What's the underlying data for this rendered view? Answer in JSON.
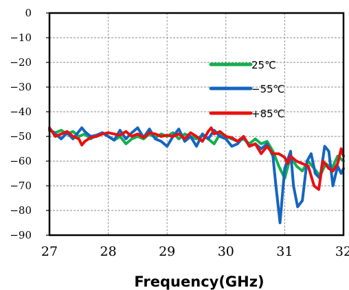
{
  "chart_data": {
    "type": "line",
    "title": "",
    "xlabel": "Frequency(GHz)",
    "ylabel": "",
    "xlim": [
      27,
      32
    ],
    "ylim": [
      -90,
      0
    ],
    "x_ticks": [
      "27",
      "28",
      "29",
      "30",
      "31",
      "32"
    ],
    "y_ticks": [
      "0",
      "-10",
      "-20",
      "-30",
      "-40",
      "-50",
      "-60",
      "-70",
      "-80",
      "-90"
    ],
    "grid": "dashed",
    "legend_position": "right-middle",
    "series": [
      {
        "name": "25℃",
        "color": "#12b04e",
        "points": [
          [
            27.0,
            -47.5
          ],
          [
            27.1,
            -48.5
          ],
          [
            27.2,
            -47.5
          ],
          [
            27.3,
            -49
          ],
          [
            27.4,
            -48
          ],
          [
            27.5,
            -50
          ],
          [
            27.6,
            -49
          ],
          [
            27.7,
            -51
          ],
          [
            27.8,
            -49.5
          ],
          [
            27.9,
            -48.5
          ],
          [
            28.0,
            -50
          ],
          [
            28.1,
            -51.5
          ],
          [
            28.2,
            -50
          ],
          [
            28.3,
            -53
          ],
          [
            28.4,
            -51
          ],
          [
            28.5,
            -50
          ],
          [
            28.6,
            -51
          ],
          [
            28.7,
            -49
          ],
          [
            28.8,
            -50.5
          ],
          [
            28.9,
            -49
          ],
          [
            29.0,
            -50
          ],
          [
            29.1,
            -48.5
          ],
          [
            29.2,
            -51
          ],
          [
            29.3,
            -49
          ],
          [
            29.4,
            -50
          ],
          [
            29.5,
            -51
          ],
          [
            29.6,
            -49.5
          ],
          [
            29.7,
            -51
          ],
          [
            29.8,
            -53
          ],
          [
            29.9,
            -49
          ],
          [
            30.0,
            -50
          ],
          [
            30.1,
            -51
          ],
          [
            30.2,
            -52
          ],
          [
            30.3,
            -51
          ],
          [
            30.4,
            -53
          ],
          [
            30.5,
            -51
          ],
          [
            30.6,
            -53
          ],
          [
            30.7,
            -52
          ],
          [
            30.8,
            -56
          ],
          [
            30.9,
            -62
          ],
          [
            31.0,
            -67
          ],
          [
            31.1,
            -58
          ],
          [
            31.2,
            -62
          ],
          [
            31.3,
            -64
          ],
          [
            31.4,
            -60
          ],
          [
            31.5,
            -63
          ],
          [
            31.6,
            -66
          ],
          [
            31.7,
            -61
          ],
          [
            31.8,
            -63
          ],
          [
            31.9,
            -58
          ],
          [
            32.0,
            -60
          ]
        ]
      },
      {
        "name": "-55℃",
        "color": "#1565c0",
        "points": [
          [
            27.0,
            -47
          ],
          [
            27.1,
            -49
          ],
          [
            27.2,
            -51
          ],
          [
            27.3,
            -48.5
          ],
          [
            27.4,
            -51
          ],
          [
            27.5,
            -48
          ],
          [
            27.55,
            -46.5
          ],
          [
            27.6,
            -48
          ],
          [
            27.7,
            -50
          ],
          [
            27.8,
            -49.5
          ],
          [
            27.9,
            -48.5
          ],
          [
            28.0,
            -50
          ],
          [
            28.1,
            -51.5
          ],
          [
            28.2,
            -47.5
          ],
          [
            28.3,
            -51
          ],
          [
            28.4,
            -48.5
          ],
          [
            28.5,
            -46.5
          ],
          [
            28.6,
            -50.5
          ],
          [
            28.7,
            -47
          ],
          [
            28.8,
            -51
          ],
          [
            28.9,
            -52
          ],
          [
            29.0,
            -54
          ],
          [
            29.1,
            -50
          ],
          [
            29.2,
            -47
          ],
          [
            29.3,
            -52
          ],
          [
            29.4,
            -50
          ],
          [
            29.5,
            -54
          ],
          [
            29.6,
            -49
          ],
          [
            29.7,
            -51
          ],
          [
            29.8,
            -47.5
          ],
          [
            29.9,
            -50
          ],
          [
            30.0,
            -51
          ],
          [
            30.1,
            -54
          ],
          [
            30.2,
            -53
          ],
          [
            30.3,
            -50
          ],
          [
            30.4,
            -54
          ],
          [
            30.5,
            -53
          ],
          [
            30.6,
            -55
          ],
          [
            30.7,
            -53
          ],
          [
            30.8,
            -58
          ],
          [
            30.85,
            -70
          ],
          [
            30.92,
            -85
          ],
          [
            31.0,
            -63
          ],
          [
            31.1,
            -56
          ],
          [
            31.15,
            -70
          ],
          [
            31.22,
            -78.5
          ],
          [
            31.3,
            -76
          ],
          [
            31.38,
            -60
          ],
          [
            31.45,
            -57
          ],
          [
            31.52,
            -65
          ],
          [
            31.6,
            -67
          ],
          [
            31.68,
            -54
          ],
          [
            31.75,
            -56
          ],
          [
            31.82,
            -70
          ],
          [
            31.9,
            -62
          ],
          [
            31.96,
            -65
          ],
          [
            32.0,
            -63
          ]
        ]
      },
      {
        "name": "+85℃",
        "color": "#e81010",
        "points": [
          [
            27.0,
            -46.5
          ],
          [
            27.1,
            -50
          ],
          [
            27.2,
            -49
          ],
          [
            27.3,
            -48
          ],
          [
            27.4,
            -50
          ],
          [
            27.5,
            -51
          ],
          [
            27.55,
            -53.5
          ],
          [
            27.6,
            -52
          ],
          [
            27.7,
            -50.5
          ],
          [
            27.8,
            -50
          ],
          [
            27.9,
            -49
          ],
          [
            28.0,
            -48.5
          ],
          [
            28.1,
            -49
          ],
          [
            28.2,
            -49.5
          ],
          [
            28.3,
            -48
          ],
          [
            28.4,
            -50
          ],
          [
            28.5,
            -49
          ],
          [
            28.6,
            -50.5
          ],
          [
            28.7,
            -48.5
          ],
          [
            28.8,
            -49
          ],
          [
            28.9,
            -50
          ],
          [
            29.0,
            -49.5
          ],
          [
            29.1,
            -50
          ],
          [
            29.2,
            -49
          ],
          [
            29.3,
            -51
          ],
          [
            29.4,
            -48.5
          ],
          [
            29.5,
            -50
          ],
          [
            29.6,
            -52
          ],
          [
            29.7,
            -48
          ],
          [
            29.75,
            -46.5
          ],
          [
            29.8,
            -49
          ],
          [
            29.9,
            -48
          ],
          [
            30.0,
            -50
          ],
          [
            30.1,
            -50.5
          ],
          [
            30.2,
            -52
          ],
          [
            30.3,
            -50
          ],
          [
            30.4,
            -54
          ],
          [
            30.5,
            -53
          ],
          [
            30.6,
            -57
          ],
          [
            30.7,
            -54
          ],
          [
            30.8,
            -57
          ],
          [
            30.9,
            -57
          ],
          [
            31.0,
            -58.5
          ],
          [
            31.05,
            -61
          ],
          [
            31.1,
            -58
          ],
          [
            31.2,
            -60
          ],
          [
            31.3,
            -61
          ],
          [
            31.4,
            -62
          ],
          [
            31.5,
            -70
          ],
          [
            31.58,
            -71.5
          ],
          [
            31.65,
            -60
          ],
          [
            31.75,
            -63
          ],
          [
            31.82,
            -64
          ],
          [
            31.9,
            -61
          ],
          [
            31.96,
            -55
          ],
          [
            32.0,
            -58
          ]
        ]
      }
    ]
  }
}
